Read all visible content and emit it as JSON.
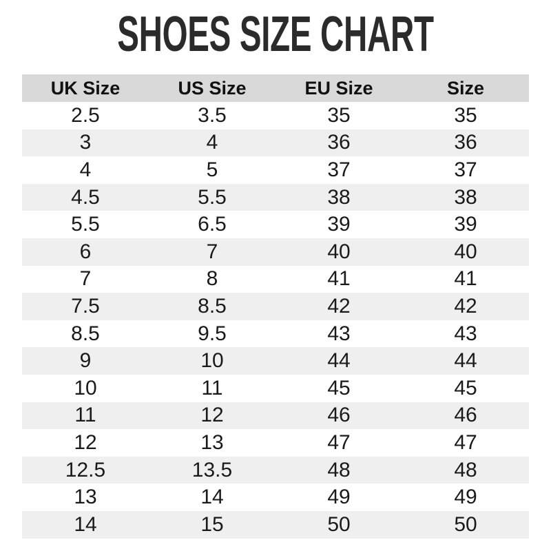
{
  "title": "SHOES SIZE CHART",
  "colors": {
    "title": "#2b2b2b",
    "header_bg": "#d9d9d9",
    "header_text": "#111111",
    "row_alt_bg": "#efefef",
    "text": "#1a1a1a",
    "background": "#ffffff"
  },
  "chart_data": {
    "type": "table",
    "title": "SHOES SIZE CHART",
    "columns": [
      "UK Size",
      "US Size",
      "EU Size",
      "Size"
    ],
    "rows": [
      [
        "2.5",
        "3.5",
        "35",
        "35"
      ],
      [
        "3",
        "4",
        "36",
        "36"
      ],
      [
        "4",
        "5",
        "37",
        "37"
      ],
      [
        "4.5",
        "5.5",
        "38",
        "38"
      ],
      [
        "5.5",
        "6.5",
        "39",
        "39"
      ],
      [
        "6",
        "7",
        "40",
        "40"
      ],
      [
        "7",
        "8",
        "41",
        "41"
      ],
      [
        "7.5",
        "8.5",
        "42",
        "42"
      ],
      [
        "8.5",
        "9.5",
        "43",
        "43"
      ],
      [
        "9",
        "10",
        "44",
        "44"
      ],
      [
        "10",
        "11",
        "45",
        "45"
      ],
      [
        "11",
        "12",
        "46",
        "46"
      ],
      [
        "12",
        "13",
        "47",
        "47"
      ],
      [
        "12.5",
        "13.5",
        "48",
        "48"
      ],
      [
        "13",
        "14",
        "49",
        "49"
      ],
      [
        "14",
        "15",
        "50",
        "50"
      ]
    ],
    "layout": {
      "stripe_pattern": "odd-rows-white-even-rows-gray",
      "grid": false
    }
  }
}
